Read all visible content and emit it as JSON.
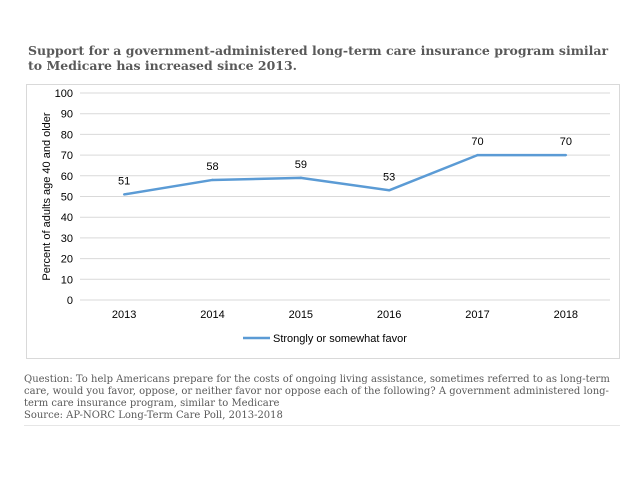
{
  "title": "Support for a government-administered long-term care insurance program similar to Medicare has increased since 2013.",
  "footnote": {
    "question": "Question: To help Americans prepare for the costs of ongoing living assistance, sometimes referred to as long-term care, would you favor, oppose, or neither favor nor oppose each of the following? A government administered long-term care insurance program, similar to Medicare",
    "source": "Source: AP-NORC Long-Term Care Poll, 2013-2018"
  },
  "colors": {
    "series": "#5b9bd5",
    "grid": "#d9d9d9",
    "text": "#595959"
  },
  "chart_data": {
    "type": "line",
    "title": "Support for a government-administered long-term care insurance program similar to Medicare has increased since 2013.",
    "xlabel": "",
    "ylabel": "Percent of adults age 40 and older",
    "categories": [
      "2013",
      "2014",
      "2015",
      "2016",
      "2017",
      "2018"
    ],
    "series": [
      {
        "name": "Strongly or somewhat favor",
        "values": [
          51,
          58,
          59,
          53,
          70,
          70
        ]
      }
    ],
    "ylim": [
      0,
      100
    ],
    "yticks": [
      0,
      10,
      20,
      30,
      40,
      50,
      60,
      70,
      80,
      90,
      100
    ],
    "grid": true,
    "legend": "bottom",
    "data_labels": true
  }
}
